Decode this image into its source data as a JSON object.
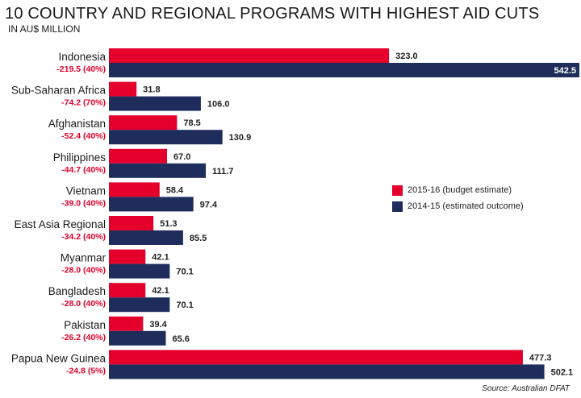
{
  "title": "10 COUNTRY AND REGIONAL PROGRAMS WITH HIGHEST AID CUTS",
  "subtitle": "IN AU$ MILLION",
  "source": "Source: Australian DFAT",
  "colors": {
    "budget": "#e4002b",
    "outcome": "#1f2d5c",
    "change": "#e4002b"
  },
  "chart_data": {
    "type": "bar",
    "orientation": "horizontal",
    "categories": [
      "Indonesia",
      "Sub-Saharan Africa",
      "Afghanistan",
      "Philippines",
      "Vietnam",
      "East Asia Regional",
      "Myanmar",
      "Bangladesh",
      "Pakistan",
      "Papua New Guinea"
    ],
    "change_labels": [
      "-219.5 (40%)",
      "-74.2 (70%)",
      "-52.4 (40%)",
      "-44.7 (40%)",
      "-39.0 (40%)",
      "-34.2 (40%)",
      "-28.0 (40%)",
      "-28.0 (40%)",
      "-26.2 (40%)",
      "-24.8 (5%)"
    ],
    "series": [
      {
        "name": "2015-16 (budget estimate)",
        "values": [
          323.0,
          31.8,
          78.5,
          67.0,
          58.4,
          51.3,
          42.1,
          42.1,
          39.4,
          477.3
        ],
        "labels": [
          "323.0",
          "31.8",
          "78.5",
          "67.0",
          "58.4",
          "51.3",
          "42.1",
          "42.1",
          "39.4",
          "477.3"
        ]
      },
      {
        "name": "2014-15 (estimated outcome)",
        "values": [
          542.5,
          106.0,
          130.9,
          111.7,
          97.4,
          85.5,
          70.1,
          70.1,
          65.6,
          502.1
        ],
        "labels": [
          "542.5",
          "106.0",
          "130.9",
          "111.7",
          "97.4",
          "85.5",
          "70.1",
          "70.1",
          "65.6",
          "502.1"
        ]
      }
    ],
    "legend_position": "right-middle",
    "grid": false
  }
}
